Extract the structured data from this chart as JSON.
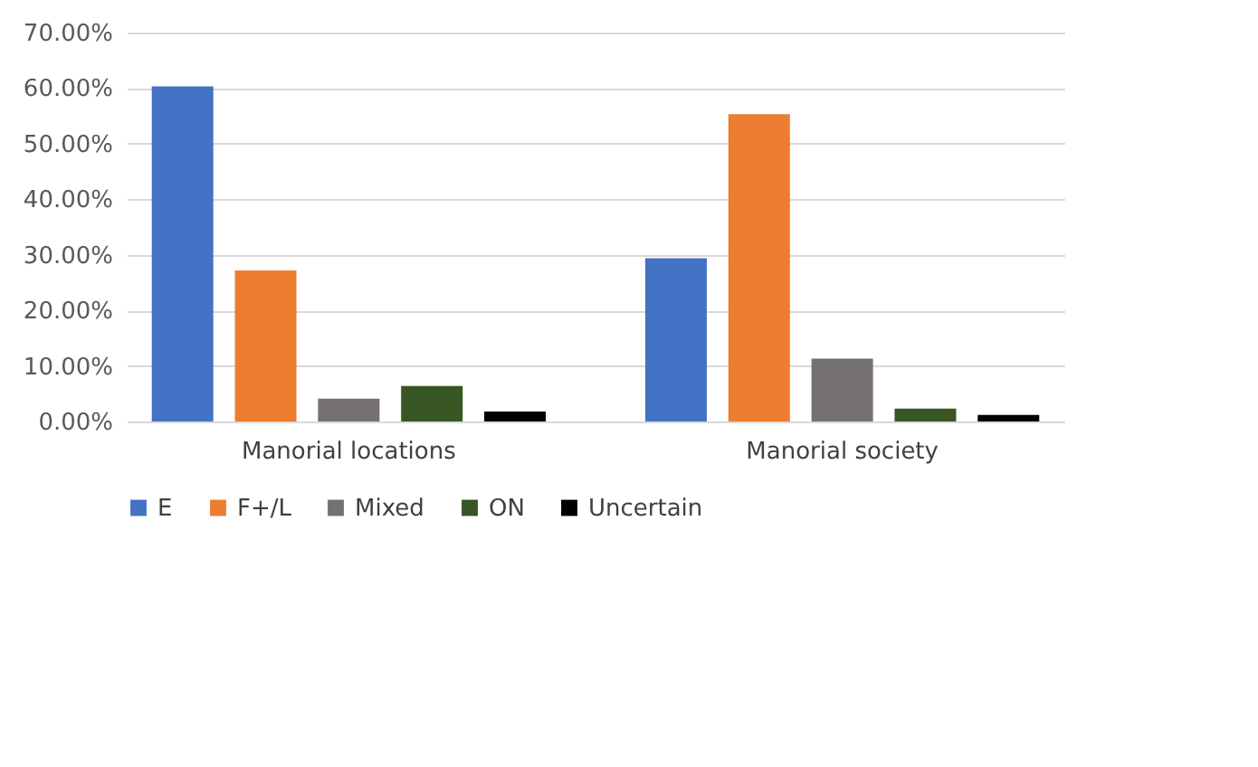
{
  "chart_data": {
    "type": "bar",
    "categories": [
      "Manorial locations",
      "Manorial society"
    ],
    "series": [
      {
        "name": "E",
        "color": "#4472c4",
        "values": [
          60.3,
          29.4
        ]
      },
      {
        "name": "F+/L",
        "color": "#ed7d31",
        "values": [
          27.2,
          55.3
        ]
      },
      {
        "name": "Mixed",
        "color": "#767171",
        "values": [
          4.1,
          11.3
        ]
      },
      {
        "name": "ON",
        "color": "#375623",
        "values": [
          6.4,
          2.3
        ]
      },
      {
        "name": "Uncertain",
        "color": "#000000",
        "values": [
          1.8,
          1.2
        ]
      }
    ],
    "ylim": [
      0,
      70
    ],
    "yticks": [
      {
        "value": 0,
        "label": "0.00%"
      },
      {
        "value": 10,
        "label": "10.00%"
      },
      {
        "value": 20,
        "label": "20.00%"
      },
      {
        "value": 30,
        "label": "30.00%"
      },
      {
        "value": 40,
        "label": "40.00%"
      },
      {
        "value": 50,
        "label": "50.00%"
      },
      {
        "value": 60,
        "label": "60.00%"
      },
      {
        "value": 70,
        "label": "70.00%"
      }
    ],
    "grid": "y",
    "legend": "bottom"
  }
}
